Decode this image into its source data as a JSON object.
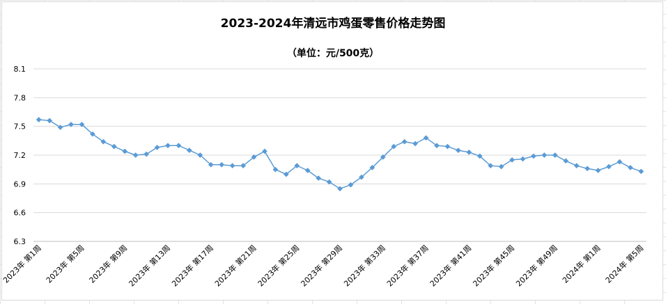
{
  "chart_data": {
    "type": "line",
    "title": "2023-2024年清远市鸡蛋零售价格走势图",
    "subtitle": "（单位：元/500克）",
    "xlabel": "",
    "ylabel": "",
    "ylim": [
      6.3,
      8.1
    ],
    "y_ticks": [
      "6.3",
      "6.6",
      "6.9",
      "7.2",
      "7.5",
      "7.8",
      "8.1"
    ],
    "grid": "horizontal",
    "legend": "none",
    "colors": {
      "series": "#5b9bd5",
      "grid": "#d9d9d9",
      "axis": "#bfbfbf"
    },
    "x": [
      "2023年 第1周",
      "2023年 第2周",
      "2023年 第3周",
      "2023年 第4周",
      "2023年 第5周",
      "2023年 第6周",
      "2023年 第7周",
      "2023年 第8周",
      "2023年 第9周",
      "2023年 第10周",
      "2023年 第11周",
      "2023年 第12周",
      "2023年 第13周",
      "2023年 第14周",
      "2023年 第15周",
      "2023年 第16周",
      "2023年 第17周",
      "2023年 第18周",
      "2023年 第19周",
      "2023年 第20周",
      "2023年 第21周",
      "2023年 第22周",
      "2023年 第23周",
      "2023年 第24周",
      "2023年 第25周",
      "2023年 第26周",
      "2023年 第27周",
      "2023年 第28周",
      "2023年 第29周",
      "2023年 第30周",
      "2023年 第31周",
      "2023年 第32周",
      "2023年 第33周",
      "2023年 第34周",
      "2023年 第35周",
      "2023年 第36周",
      "2023年 第37周",
      "2023年 第38周",
      "2023年 第39周",
      "2023年 第40周",
      "2023年 第41周",
      "2023年 第42周",
      "2023年 第43周",
      "2023年 第44周",
      "2023年 第45周",
      "2023年 第46周",
      "2023年 第47周",
      "2023年 第48周",
      "2023年 第49周",
      "2023年 第50周",
      "2023年 第51周",
      "2023年 第52周",
      "2024年 第1周",
      "2024年 第2周",
      "2024年 第3周",
      "2024年 第4周",
      "2024年 第5周"
    ],
    "x_tick_labels": [
      "2023年 第1周",
      "2023年 第5周",
      "2023年 第9周",
      "2023年 第13周",
      "2023年 第17周",
      "2023年 第21周",
      "2023年 第25周",
      "2023年 第29周",
      "2023年 第33周",
      "2023年 第37周",
      "2023年 第41周",
      "2023年 第45周",
      "2023年 第49周",
      "2024年 第1周",
      "2024年 第5周"
    ],
    "series": [
      {
        "values": [
          7.57,
          7.56,
          7.49,
          7.52,
          7.52,
          7.42,
          7.34,
          7.29,
          7.24,
          7.2,
          7.21,
          7.28,
          7.3,
          7.3,
          7.25,
          7.2,
          7.1,
          7.1,
          7.09,
          7.09,
          7.18,
          7.24,
          7.05,
          7.0,
          7.09,
          7.04,
          6.96,
          6.92,
          6.85,
          6.89,
          6.97,
          7.07,
          7.18,
          7.29,
          7.34,
          7.32,
          7.38,
          7.3,
          7.29,
          7.25,
          7.23,
          7.19,
          7.09,
          7.08,
          7.15,
          7.16,
          7.19,
          7.2,
          7.2,
          7.14,
          7.09,
          7.06,
          7.04,
          7.08,
          7.13,
          7.07,
          7.03
        ]
      }
    ]
  }
}
